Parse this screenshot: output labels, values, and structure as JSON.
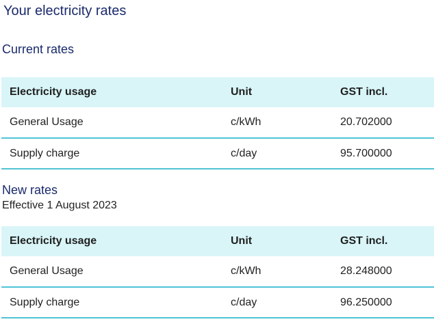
{
  "page_title": "Your electricity rates",
  "current": {
    "title": "Current rates",
    "headers": [
      "Electricity usage",
      "Unit",
      "GST incl."
    ],
    "rows": [
      [
        "General Usage",
        "c/kWh",
        "20.702000"
      ],
      [
        "Supply charge",
        "c/day",
        "95.700000"
      ]
    ]
  },
  "new": {
    "title": "New rates",
    "effective": "Effective 1 August 2023",
    "headers": [
      "Electricity usage",
      "Unit",
      "GST incl."
    ],
    "rows": [
      [
        "General Usage",
        "c/kWh",
        "28.248000"
      ],
      [
        "Supply charge",
        "c/day",
        "96.250000"
      ]
    ]
  }
}
